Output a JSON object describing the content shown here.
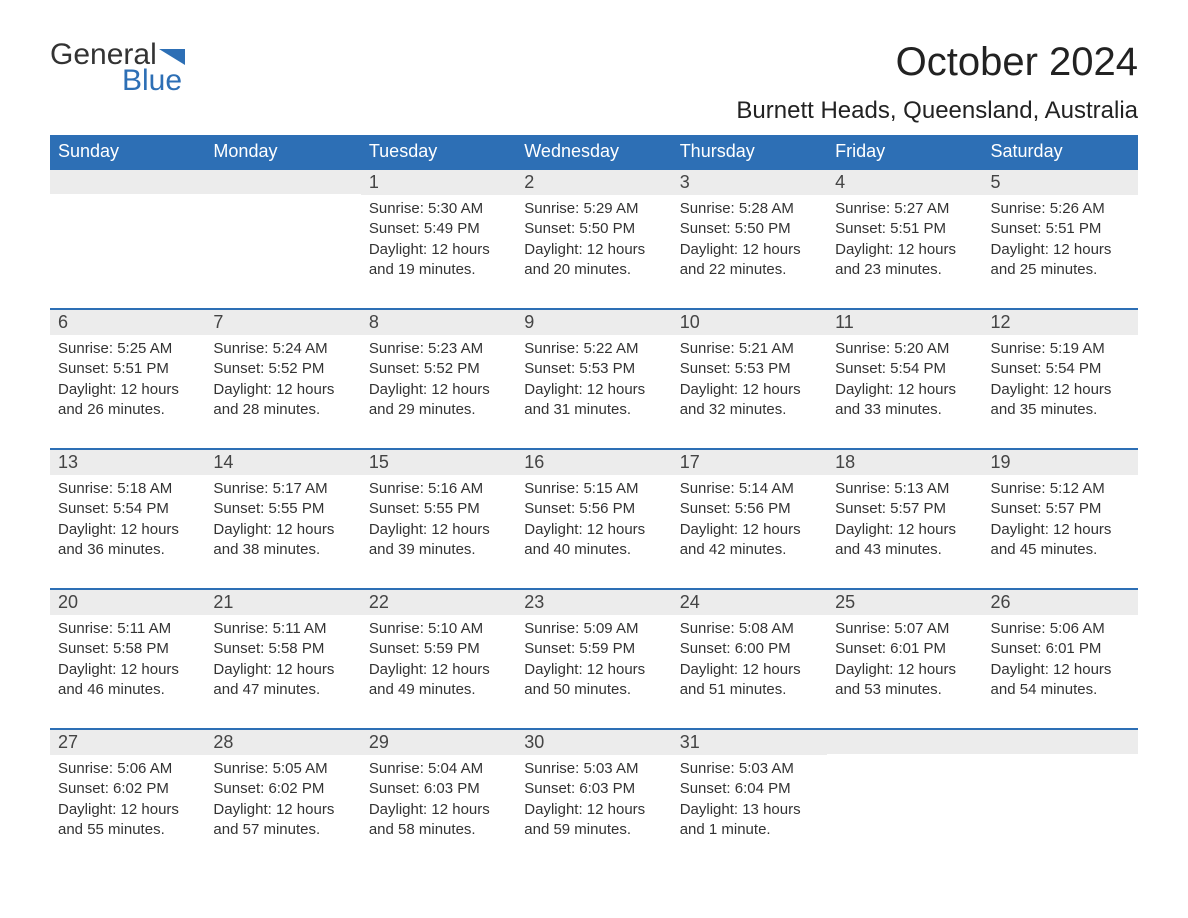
{
  "brand": {
    "word1": "General",
    "word2": "Blue",
    "icon_color": "#2d6fb5"
  },
  "title": "October 2024",
  "location": "Burnett Heads, Queensland, Australia",
  "colors": {
    "header_bg": "#2d6fb5",
    "header_text": "#ffffff",
    "daynum_bg": "#ececec",
    "border_accent": "#2d6fb5",
    "body_text": "#333333",
    "page_bg": "#ffffff"
  },
  "weekdays": [
    "Sunday",
    "Monday",
    "Tuesday",
    "Wednesday",
    "Thursday",
    "Friday",
    "Saturday"
  ],
  "first_weekday_index": 2,
  "days": [
    {
      "n": 1,
      "sunrise": "5:30 AM",
      "sunset": "5:49 PM",
      "daylight": "12 hours and 19 minutes."
    },
    {
      "n": 2,
      "sunrise": "5:29 AM",
      "sunset": "5:50 PM",
      "daylight": "12 hours and 20 minutes."
    },
    {
      "n": 3,
      "sunrise": "5:28 AM",
      "sunset": "5:50 PM",
      "daylight": "12 hours and 22 minutes."
    },
    {
      "n": 4,
      "sunrise": "5:27 AM",
      "sunset": "5:51 PM",
      "daylight": "12 hours and 23 minutes."
    },
    {
      "n": 5,
      "sunrise": "5:26 AM",
      "sunset": "5:51 PM",
      "daylight": "12 hours and 25 minutes."
    },
    {
      "n": 6,
      "sunrise": "5:25 AM",
      "sunset": "5:51 PM",
      "daylight": "12 hours and 26 minutes."
    },
    {
      "n": 7,
      "sunrise": "5:24 AM",
      "sunset": "5:52 PM",
      "daylight": "12 hours and 28 minutes."
    },
    {
      "n": 8,
      "sunrise": "5:23 AM",
      "sunset": "5:52 PM",
      "daylight": "12 hours and 29 minutes."
    },
    {
      "n": 9,
      "sunrise": "5:22 AM",
      "sunset": "5:53 PM",
      "daylight": "12 hours and 31 minutes."
    },
    {
      "n": 10,
      "sunrise": "5:21 AM",
      "sunset": "5:53 PM",
      "daylight": "12 hours and 32 minutes."
    },
    {
      "n": 11,
      "sunrise": "5:20 AM",
      "sunset": "5:54 PM",
      "daylight": "12 hours and 33 minutes."
    },
    {
      "n": 12,
      "sunrise": "5:19 AM",
      "sunset": "5:54 PM",
      "daylight": "12 hours and 35 minutes."
    },
    {
      "n": 13,
      "sunrise": "5:18 AM",
      "sunset": "5:54 PM",
      "daylight": "12 hours and 36 minutes."
    },
    {
      "n": 14,
      "sunrise": "5:17 AM",
      "sunset": "5:55 PM",
      "daylight": "12 hours and 38 minutes."
    },
    {
      "n": 15,
      "sunrise": "5:16 AM",
      "sunset": "5:55 PM",
      "daylight": "12 hours and 39 minutes."
    },
    {
      "n": 16,
      "sunrise": "5:15 AM",
      "sunset": "5:56 PM",
      "daylight": "12 hours and 40 minutes."
    },
    {
      "n": 17,
      "sunrise": "5:14 AM",
      "sunset": "5:56 PM",
      "daylight": "12 hours and 42 minutes."
    },
    {
      "n": 18,
      "sunrise": "5:13 AM",
      "sunset": "5:57 PM",
      "daylight": "12 hours and 43 minutes."
    },
    {
      "n": 19,
      "sunrise": "5:12 AM",
      "sunset": "5:57 PM",
      "daylight": "12 hours and 45 minutes."
    },
    {
      "n": 20,
      "sunrise": "5:11 AM",
      "sunset": "5:58 PM",
      "daylight": "12 hours and 46 minutes."
    },
    {
      "n": 21,
      "sunrise": "5:11 AM",
      "sunset": "5:58 PM",
      "daylight": "12 hours and 47 minutes."
    },
    {
      "n": 22,
      "sunrise": "5:10 AM",
      "sunset": "5:59 PM",
      "daylight": "12 hours and 49 minutes."
    },
    {
      "n": 23,
      "sunrise": "5:09 AM",
      "sunset": "5:59 PM",
      "daylight": "12 hours and 50 minutes."
    },
    {
      "n": 24,
      "sunrise": "5:08 AM",
      "sunset": "6:00 PM",
      "daylight": "12 hours and 51 minutes."
    },
    {
      "n": 25,
      "sunrise": "5:07 AM",
      "sunset": "6:01 PM",
      "daylight": "12 hours and 53 minutes."
    },
    {
      "n": 26,
      "sunrise": "5:06 AM",
      "sunset": "6:01 PM",
      "daylight": "12 hours and 54 minutes."
    },
    {
      "n": 27,
      "sunrise": "5:06 AM",
      "sunset": "6:02 PM",
      "daylight": "12 hours and 55 minutes."
    },
    {
      "n": 28,
      "sunrise": "5:05 AM",
      "sunset": "6:02 PM",
      "daylight": "12 hours and 57 minutes."
    },
    {
      "n": 29,
      "sunrise": "5:04 AM",
      "sunset": "6:03 PM",
      "daylight": "12 hours and 58 minutes."
    },
    {
      "n": 30,
      "sunrise": "5:03 AM",
      "sunset": "6:03 PM",
      "daylight": "12 hours and 59 minutes."
    },
    {
      "n": 31,
      "sunrise": "5:03 AM",
      "sunset": "6:04 PM",
      "daylight": "13 hours and 1 minute."
    }
  ],
  "labels": {
    "sunrise": "Sunrise: ",
    "sunset": "Sunset: ",
    "daylight": "Daylight: "
  }
}
